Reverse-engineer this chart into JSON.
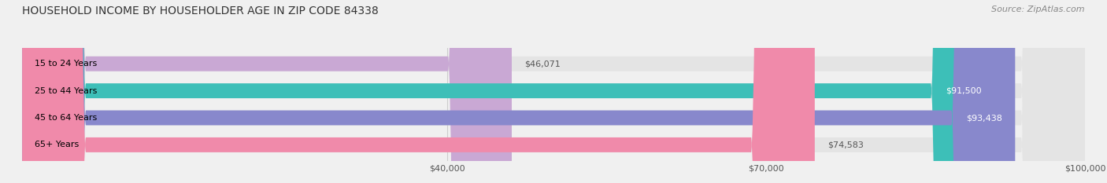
{
  "title": "HOUSEHOLD INCOME BY HOUSEHOLDER AGE IN ZIP CODE 84338",
  "source": "Source: ZipAtlas.com",
  "categories": [
    "15 to 24 Years",
    "25 to 44 Years",
    "45 to 64 Years",
    "65+ Years"
  ],
  "values": [
    46071,
    91500,
    93438,
    74583
  ],
  "bar_colors": [
    "#c9a8d4",
    "#3dbfb8",
    "#8888cc",
    "#f08aaa"
  ],
  "background_color": "#f0f0f0",
  "bar_bg_color": "#e4e4e4",
  "xlim": [
    0,
    100000
  ],
  "xticks": [
    40000,
    70000,
    100000
  ],
  "xtick_labels": [
    "$40,000",
    "$70,000",
    "$100,000"
  ],
  "value_labels": [
    "$46,071",
    "$91,500",
    "$93,438",
    "$74,583"
  ],
  "label_colors": [
    "#555555",
    "#ffffff",
    "#ffffff",
    "#555555"
  ]
}
